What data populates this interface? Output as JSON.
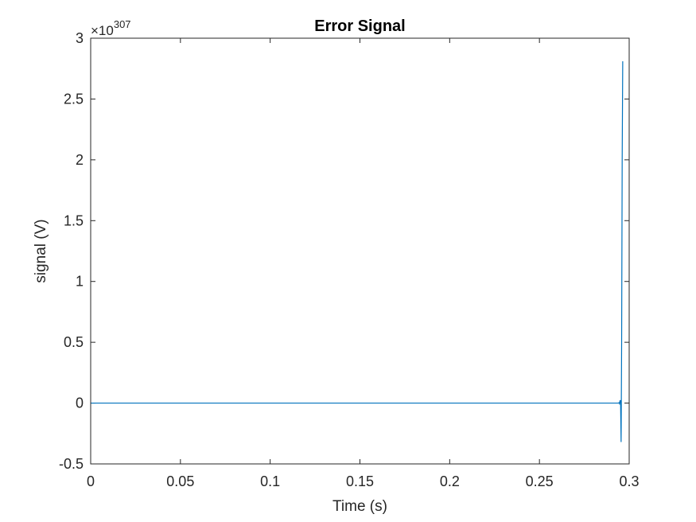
{
  "chart_data": {
    "type": "line",
    "title": "Error Signal",
    "xlabel": "Time (s)",
    "ylabel": "signal (V)",
    "y_exponent_label": {
      "base": "×10",
      "power": "307"
    },
    "xlim": [
      0,
      0.3
    ],
    "ylim": [
      -0.5,
      3
    ],
    "x_ticks": [
      0,
      0.05,
      0.1,
      0.15,
      0.2,
      0.25,
      0.3
    ],
    "x_tick_labels": [
      "0",
      "0.05",
      "0.1",
      "0.15",
      "0.2",
      "0.25",
      "0.3"
    ],
    "y_ticks": [
      -0.5,
      0,
      0.5,
      1,
      1.5,
      2,
      2.5,
      3
    ],
    "y_tick_labels": [
      "-0.5",
      "0",
      "0.5",
      "1",
      "1.5",
      "2",
      "2.5",
      "3"
    ],
    "grid": false,
    "box": true,
    "series": [
      {
        "color": "#0072bd",
        "x": [
          0,
          0.294,
          0.2943,
          0.2946,
          0.2949,
          0.2952,
          0.2955,
          0.2958,
          0.2961,
          0.2964
        ],
        "y": [
          0,
          0,
          0.003,
          -0.005,
          0.02,
          0.02,
          -0.32,
          0.5,
          2.0,
          2.81
        ]
      }
    ]
  }
}
